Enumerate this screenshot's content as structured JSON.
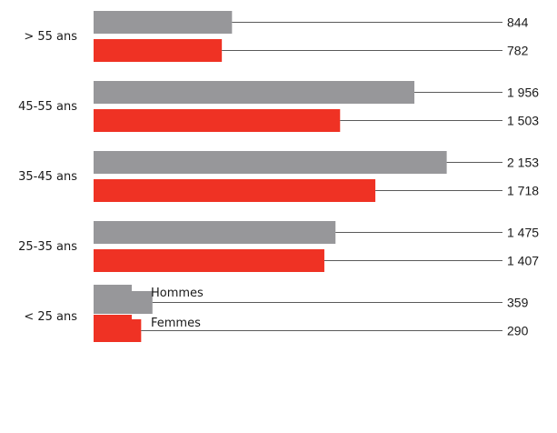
{
  "chart_data": {
    "type": "bar",
    "orientation": "horizontal",
    "categories": [
      "> 55 ans",
      "45-55 ans",
      "35-45 ans",
      "25-35 ans",
      "< 25 ans"
    ],
    "series": [
      {
        "name": "Hommes",
        "color": "#97979a",
        "values": [
          844,
          1956,
          2153,
          1475,
          359
        ],
        "labels": [
          "844",
          "1 956",
          "2 153",
          "1 475",
          "359"
        ]
      },
      {
        "name": "Femmes",
        "color": "#ef3224",
        "values": [
          782,
          1503,
          1718,
          1407,
          290
        ],
        "labels": [
          "782",
          "1 503",
          "1 718",
          "1 407",
          "290"
        ]
      }
    ],
    "legend_position": "bottom-left",
    "grid": false,
    "data_labels": "right, with leader lines"
  }
}
